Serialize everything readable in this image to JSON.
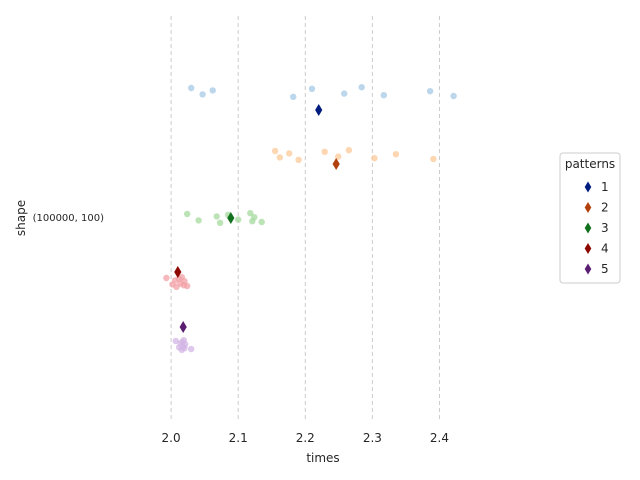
{
  "chart_data": {
    "type": "scatter",
    "xlabel": "times",
    "ylabel": "shape",
    "category": "(100000, 100)",
    "xlim": [
      1.9,
      2.52
    ],
    "xticks": [
      2.0,
      2.1,
      2.2,
      2.3,
      2.4
    ],
    "xtick_labels": [
      "2.0",
      "2.1",
      "2.2",
      "2.3",
      "2.4"
    ],
    "grid": "vertical dashed",
    "legend": {
      "title": "patterns",
      "placement": "right"
    },
    "series": [
      {
        "name": "1",
        "color": "#a6c8e6",
        "marker_color": "#001c7f",
        "points": [
          2.03,
          2.047,
          2.062,
          2.182,
          2.21,
          2.258,
          2.284,
          2.317,
          2.386,
          2.421
        ],
        "mean": 2.22
      },
      {
        "name": "2",
        "color": "#fcc898",
        "marker_color": "#b1400d",
        "points": [
          2.155,
          2.162,
          2.176,
          2.19,
          2.229,
          2.249,
          2.265,
          2.303,
          2.335,
          2.391
        ],
        "mean": 2.246
      },
      {
        "name": "3",
        "color": "#a6d99e",
        "marker_color": "#12711c",
        "points": [
          2.024,
          2.041,
          2.068,
          2.073,
          2.085,
          2.1,
          2.118,
          2.121,
          2.124,
          2.135
        ],
        "mean": 2.089
      },
      {
        "name": "4",
        "color": "#f2a0a6",
        "marker_color": "#8c0800",
        "points": [
          1.993,
          2.002,
          2.006,
          2.008,
          2.012,
          2.014,
          2.016,
          2.019,
          2.02,
          2.024
        ],
        "mean": 2.01
      },
      {
        "name": "5",
        "color": "#d3b6e4",
        "marker_color": "#591e71",
        "points": [
          2.007,
          2.012,
          2.014,
          2.016,
          2.017,
          2.018,
          2.019,
          2.02,
          2.021,
          2.03
        ],
        "mean": 2.018
      }
    ]
  }
}
